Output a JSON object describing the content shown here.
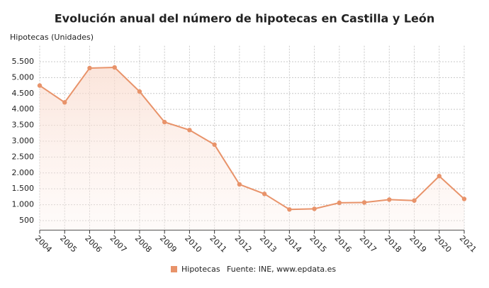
{
  "chart_data": {
    "type": "line",
    "title": "Evolución anual del número de hipotecas en Castilla y León",
    "y_label": "Hipotecas (Unidades)",
    "source": "Fuente: INE, www.epdata.es",
    "categories": [
      "2004",
      "2005",
      "2006",
      "2007",
      "2008",
      "2009",
      "2010",
      "2011",
      "2012",
      "2013",
      "2014",
      "2015",
      "2016",
      "2017",
      "2018",
      "2019",
      "2020",
      "2021"
    ],
    "series": [
      {
        "name": "Hipotecas",
        "color": "#e8936a",
        "values": [
          4750,
          4220,
          5300,
          5320,
          4560,
          3600,
          3350,
          2890,
          1640,
          1340,
          850,
          870,
          1060,
          1070,
          1160,
          1130,
          1900,
          1180
        ]
      }
    ],
    "ylim": [
      200,
      6000
    ],
    "yticks": [
      500,
      {
        "value": 1000,
        "label": "1.000"
      },
      {
        "value": 1500,
        "label": "1.500"
      },
      {
        "value": 2000,
        "label": "2.000"
      },
      {
        "value": 2500,
        "label": "2.500"
      },
      {
        "value": 3000,
        "label": "3.000"
      },
      {
        "value": 3500,
        "label": "3.500"
      },
      {
        "value": 4000,
        "label": "4.000"
      },
      {
        "value": 4500,
        "label": "4.500"
      },
      {
        "value": 5000,
        "label": "5.000"
      },
      {
        "value": 5500,
        "label": "5.500"
      }
    ],
    "grid": true
  }
}
